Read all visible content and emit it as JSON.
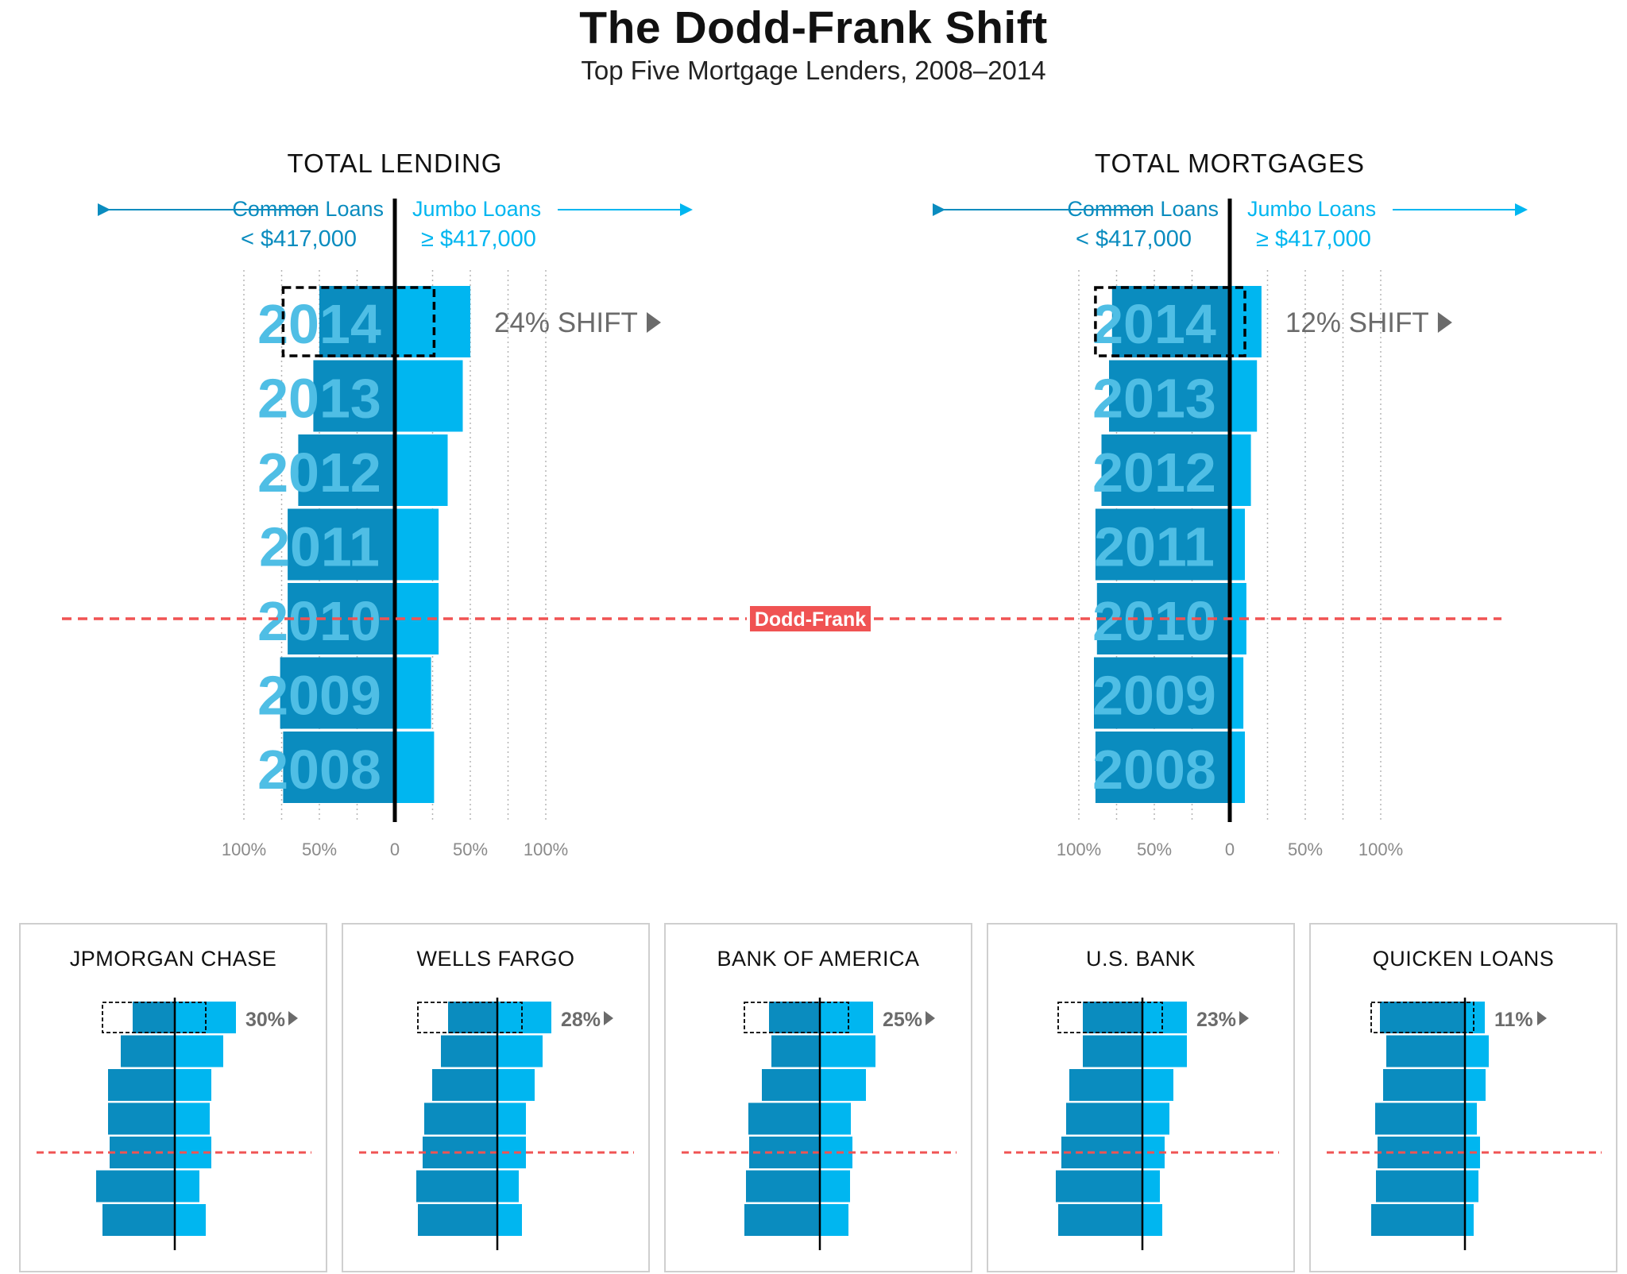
{
  "title": "The Dodd-Frank Shift",
  "subtitle": "Top Five Mortgage Lenders, 2008–2014",
  "colors": {
    "common": "#0A8CBF",
    "jumbo": "#00B6F0",
    "year_text": "#4FBEE5",
    "arrow_common": "#0A8CBF",
    "arrow_jumbo": "#00B6F0",
    "shift_text": "#6b6b6b",
    "dodd_frank": "#F05353",
    "grid": "#b5b5b5",
    "axis": "#000000"
  },
  "legend": {
    "common_label": "Common Loans",
    "common_threshold": "< $417,000",
    "jumbo_label": "Jumbo Loans",
    "jumbo_threshold": "≥ $417,000"
  },
  "dodd_frank_label": "Dodd-Frank",
  "dodd_frank_year": 2010,
  "axis_ticks": [
    "100%",
    "50%",
    "0",
    "50%",
    "100%"
  ],
  "chart_data": [
    {
      "type": "bar",
      "title": "TOTAL LENDING",
      "categories": [
        "2014",
        "2013",
        "2012",
        "2011",
        "2010",
        "2009",
        "2008"
      ],
      "xlim": [
        -100,
        100
      ],
      "series": [
        {
          "name": "Common Loans",
          "values": [
            -50,
            -54,
            -64,
            -71,
            -71,
            -76,
            -74
          ]
        },
        {
          "name": "Jumbo Loans",
          "values": [
            50,
            45,
            35,
            29,
            29,
            24,
            26
          ]
        }
      ],
      "annotation": "24% SHIFT"
    },
    {
      "type": "bar",
      "title": "TOTAL MORTGAGES",
      "categories": [
        "2014",
        "2013",
        "2012",
        "2011",
        "2010",
        "2009",
        "2008"
      ],
      "xlim": [
        -100,
        100
      ],
      "series": [
        {
          "name": "Common Loans",
          "values": [
            -78,
            -80,
            -85,
            -89,
            -88,
            -90,
            -89
          ]
        },
        {
          "name": "Jumbo Loans",
          "values": [
            21,
            18,
            14,
            10,
            11,
            9,
            10
          ]
        }
      ],
      "annotation": "12% SHIFT"
    },
    {
      "type": "bar",
      "title": "JPMORGAN CHASE",
      "annotation": "30%",
      "categories": [
        "2014",
        "2013",
        "2012",
        "2011",
        "2010",
        "2009",
        "2008"
      ],
      "series": [
        {
          "name": "Common Loans",
          "values": [
            -53,
            -68,
            -84,
            -84,
            -82,
            -99,
            -91
          ]
        },
        {
          "name": "Jumbo Loans",
          "values": [
            77,
            61,
            46,
            44,
            46,
            31,
            39
          ]
        }
      ]
    },
    {
      "type": "bar",
      "title": "WELLS FARGO",
      "annotation": "28%",
      "categories": [
        "2014",
        "2013",
        "2012",
        "2011",
        "2010",
        "2009",
        "2008"
      ],
      "series": [
        {
          "name": "Common Loans",
          "values": [
            -62,
            -71,
            -82,
            -92,
            -94,
            -102,
            -100
          ]
        },
        {
          "name": "Jumbo Loans",
          "values": [
            68,
            57,
            47,
            36,
            36,
            27,
            31
          ]
        }
      ]
    },
    {
      "type": "bar",
      "title": "BANK OF AMERICA",
      "annotation": "25%",
      "categories": [
        "2014",
        "2013",
        "2012",
        "2011",
        "2010",
        "2009",
        "2008"
      ],
      "series": [
        {
          "name": "Common Loans",
          "values": [
            -64,
            -61,
            -73,
            -90,
            -89,
            -93,
            -95
          ]
        },
        {
          "name": "Jumbo Loans",
          "values": [
            67,
            70,
            58,
            39,
            41,
            38,
            36
          ]
        }
      ]
    },
    {
      "type": "bar",
      "title": "U.S. BANK",
      "annotation": "23%",
      "categories": [
        "2014",
        "2013",
        "2012",
        "2011",
        "2010",
        "2009",
        "2008"
      ],
      "series": [
        {
          "name": "Common Loans",
          "values": [
            -75,
            -75,
            -92,
            -96,
            -102,
            -109,
            -106
          ]
        },
        {
          "name": "Jumbo Loans",
          "values": [
            56,
            56,
            39,
            34,
            28,
            22,
            25
          ]
        }
      ]
    },
    {
      "type": "bar",
      "title": "QUICKEN LOANS",
      "annotation": "11%",
      "categories": [
        "2014",
        "2013",
        "2012",
        "2011",
        "2010",
        "2009",
        "2008"
      ],
      "series": [
        {
          "name": "Common Loans",
          "values": [
            -107,
            -99,
            -103,
            -113,
            -110,
            -112,
            -118
          ]
        },
        {
          "name": "Jumbo Loans",
          "values": [
            25,
            30,
            26,
            15,
            19,
            17,
            11
          ]
        }
      ]
    }
  ]
}
